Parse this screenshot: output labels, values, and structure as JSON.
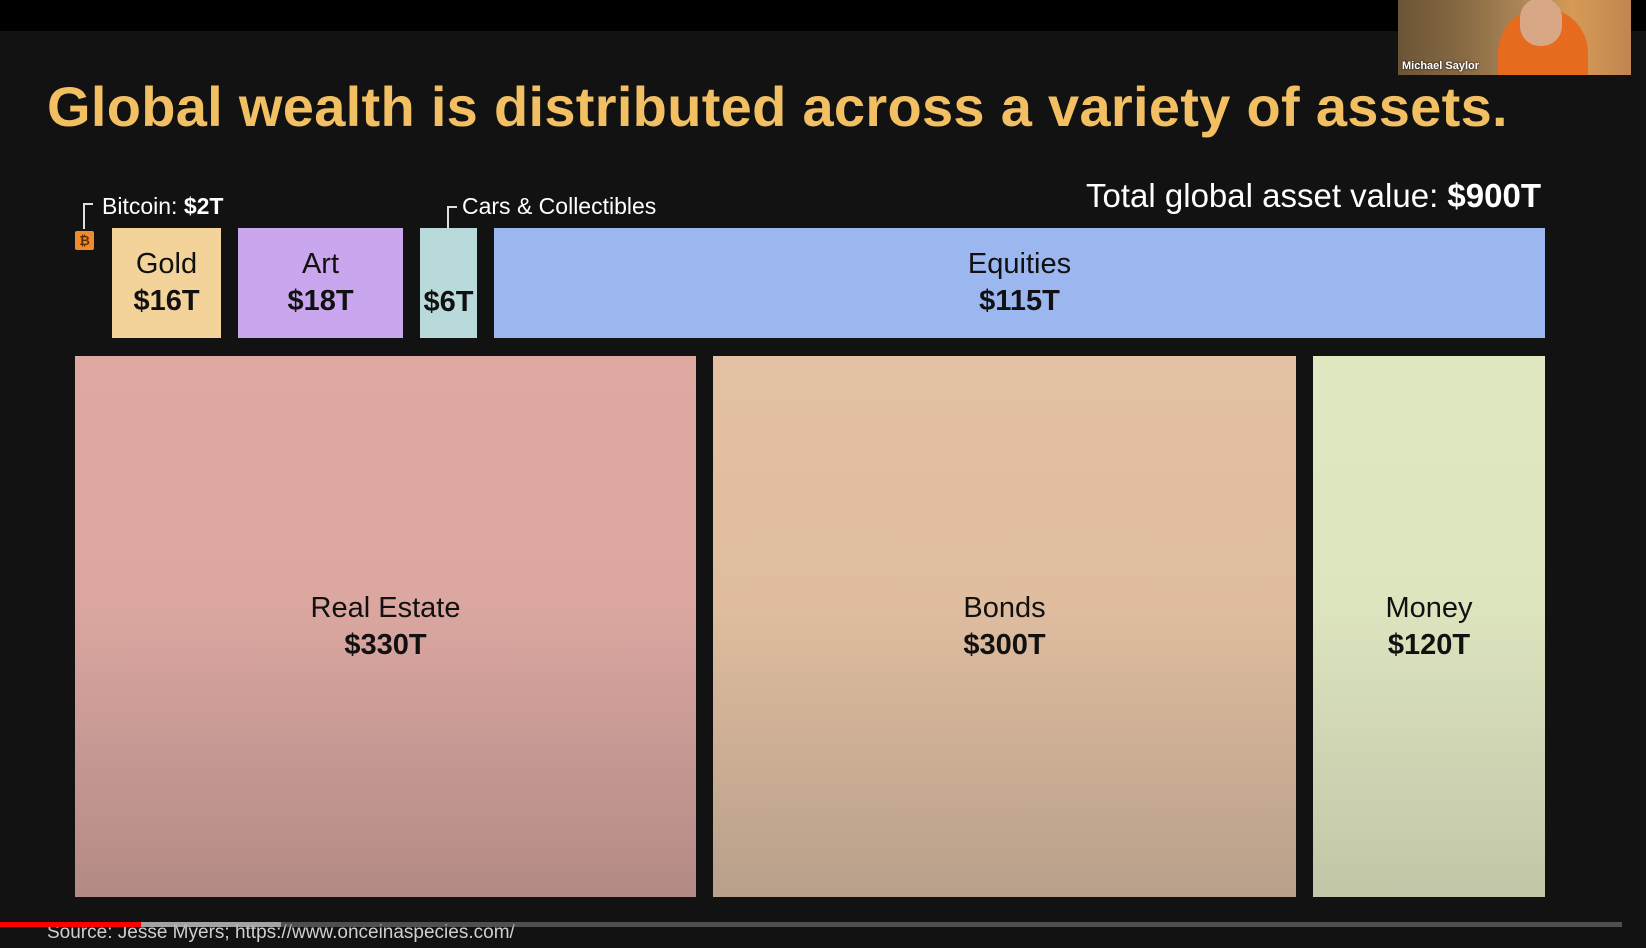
{
  "slide": {
    "title": "Global wealth is distributed across a variety of assets.",
    "total_label": "Total global asset value:",
    "total_value": "$900T",
    "bitcoin_label": "Bitcoin:",
    "bitcoin_value": "$2T",
    "bitcoin_icon": "bitcoin-icon",
    "cars_label": "Cars & Collectibles",
    "source": "Source: Jesse Myers; https://www.onceinaspecies.com/"
  },
  "video": {
    "progress_fraction": 0.087,
    "buffered_fraction": 0.173,
    "progress_color": "#ff0000"
  },
  "camera": {
    "name": "Michael Saylor"
  },
  "chart_data": {
    "type": "treemap",
    "title": "Global wealth is distributed across a variety of assets.",
    "unit": "$T",
    "total": 900,
    "items": [
      {
        "name": "Bitcoin",
        "value": 2,
        "display": "$2T",
        "color": "#f08a2c"
      },
      {
        "name": "Gold",
        "value": 16,
        "display": "$16T",
        "color": "#f3d39a"
      },
      {
        "name": "Art",
        "value": 18,
        "display": "$18T",
        "color": "#c9a6ee"
      },
      {
        "name": "Cars & Collectibles",
        "value": 6,
        "display": "$6T",
        "color": "#b8dada"
      },
      {
        "name": "Equities",
        "value": 115,
        "display": "$115T",
        "color": "#9cb6f0"
      },
      {
        "name": "Real Estate",
        "value": 330,
        "display": "$330T",
        "color": "#dca7a1"
      },
      {
        "name": "Bonds",
        "value": 300,
        "display": "$300T",
        "color": "#e0bd9f"
      },
      {
        "name": "Money",
        "value": 120,
        "display": "$120T",
        "color": "#dde5bf"
      }
    ]
  }
}
